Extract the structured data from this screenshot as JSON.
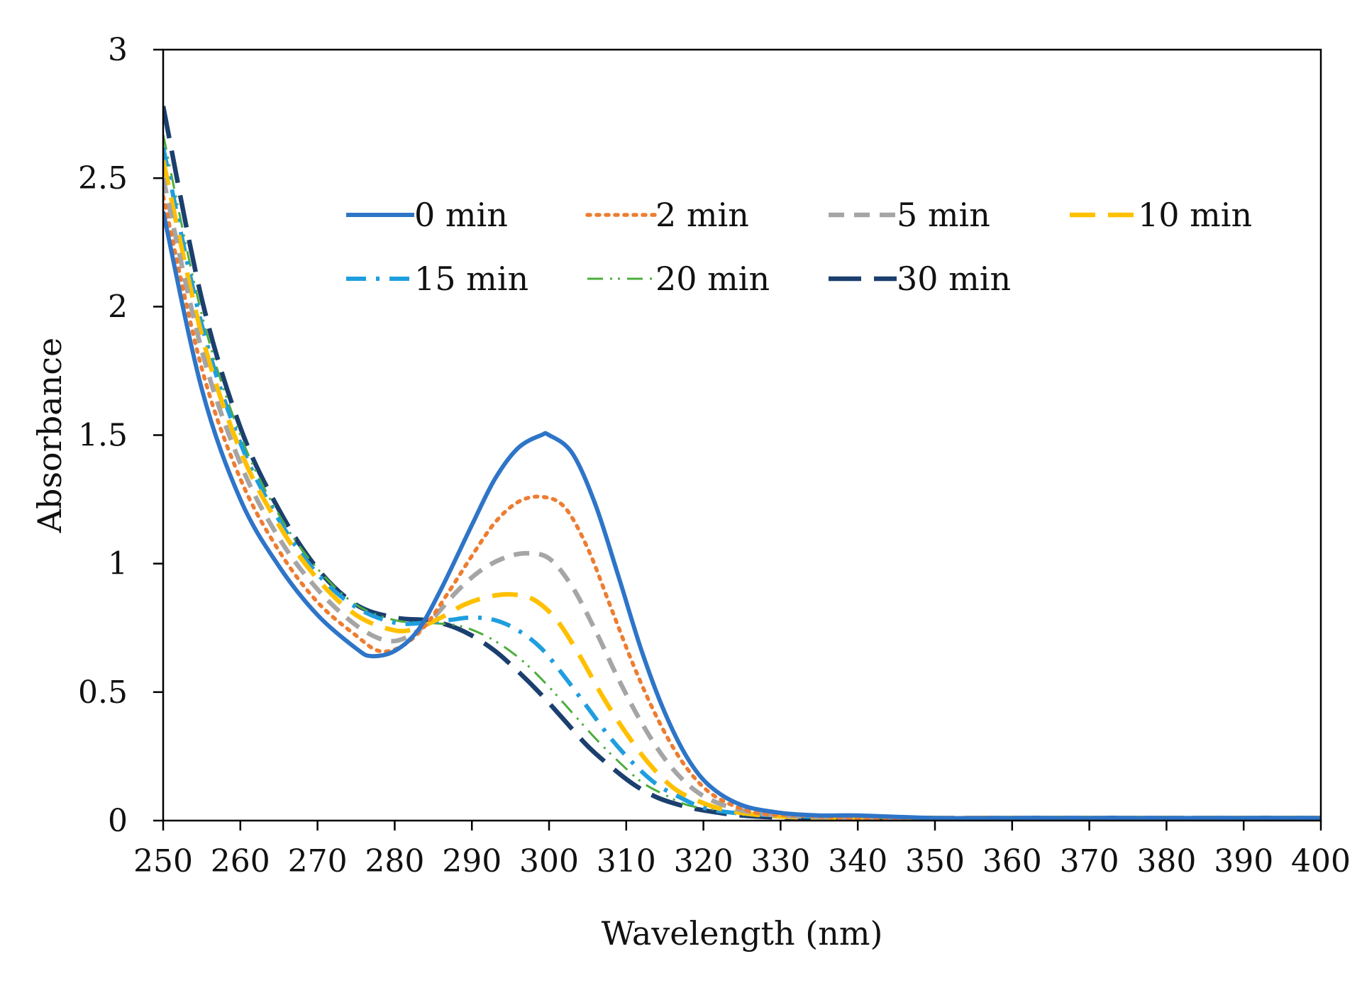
{
  "chart_data": {
    "type": "line",
    "title": "",
    "xlabel": "Wavelength (nm)",
    "ylabel": "Absorbance",
    "xlim": [
      250,
      400
    ],
    "ylim": [
      0,
      3
    ],
    "xticks": [
      250,
      260,
      270,
      280,
      290,
      300,
      310,
      320,
      330,
      340,
      350,
      360,
      370,
      380,
      390,
      400
    ],
    "yticks": [
      0,
      0.5,
      1,
      1.5,
      2,
      2.5,
      3
    ],
    "ytick_labels": [
      "0",
      "0.5",
      "1",
      "1.5",
      "2",
      "2.5",
      "3"
    ],
    "grid": false,
    "legend": "top-center",
    "series": [
      {
        "name": "0 min",
        "color": "#2e75c8",
        "style": "solid",
        "x": [
          250,
          255,
          260,
          265,
          270,
          275,
          277,
          280,
          283,
          286,
          290,
          293,
          296,
          299,
          300,
          303,
          306,
          309,
          312,
          315,
          318,
          321,
          325,
          330,
          335,
          340,
          350,
          360,
          370,
          380,
          390,
          400
        ],
        "y": [
          2.37,
          1.68,
          1.25,
          0.99,
          0.8,
          0.67,
          0.64,
          0.66,
          0.74,
          0.9,
          1.15,
          1.33,
          1.45,
          1.5,
          1.5,
          1.43,
          1.23,
          0.95,
          0.66,
          0.42,
          0.24,
          0.13,
          0.06,
          0.03,
          0.02,
          0.02,
          0.01,
          0.01,
          0.01,
          0.01,
          0.01,
          0.01
        ]
      },
      {
        "name": "2 min",
        "color": "#ed7d31",
        "style": "dotted",
        "x": [
          250,
          255,
          260,
          265,
          270,
          275,
          278,
          281,
          284,
          287,
          290,
          293,
          296,
          299,
          302,
          305,
          308,
          311,
          314,
          317,
          320,
          323,
          327,
          332,
          340,
          350,
          360,
          370,
          380,
          390,
          400
        ],
        "y": [
          2.43,
          1.76,
          1.33,
          1.05,
          0.85,
          0.72,
          0.66,
          0.68,
          0.76,
          0.89,
          1.03,
          1.16,
          1.24,
          1.26,
          1.22,
          1.06,
          0.83,
          0.6,
          0.4,
          0.24,
          0.13,
          0.07,
          0.03,
          0.02,
          0.01,
          0.01,
          0.01,
          0.01,
          0.01,
          0.01,
          0.01
        ]
      },
      {
        "name": "5 min",
        "color": "#a5a5a5",
        "style": "dashed",
        "x": [
          250,
          255,
          260,
          265,
          270,
          275,
          279,
          282,
          285,
          288,
          291,
          294,
          297,
          300,
          303,
          306,
          309,
          312,
          315,
          318,
          321,
          325,
          330,
          340,
          350,
          360,
          370,
          380,
          390,
          400
        ],
        "y": [
          2.5,
          1.83,
          1.39,
          1.1,
          0.9,
          0.76,
          0.7,
          0.72,
          0.79,
          0.89,
          0.97,
          1.02,
          1.04,
          1.02,
          0.91,
          0.74,
          0.55,
          0.38,
          0.24,
          0.14,
          0.08,
          0.04,
          0.02,
          0.01,
          0.01,
          0.01,
          0.01,
          0.01,
          0.01,
          0.01
        ]
      },
      {
        "name": "10 min",
        "color": "#ffc000",
        "style": "dashed-long",
        "x": [
          250,
          255,
          260,
          265,
          270,
          275,
          280,
          283,
          286,
          289,
          292,
          295,
          298,
          301,
          304,
          307,
          310,
          313,
          316,
          319,
          323,
          328,
          335,
          340,
          350,
          360,
          370,
          380,
          390,
          400
        ],
        "y": [
          2.57,
          1.89,
          1.44,
          1.15,
          0.94,
          0.8,
          0.74,
          0.75,
          0.79,
          0.84,
          0.87,
          0.88,
          0.86,
          0.78,
          0.64,
          0.48,
          0.34,
          0.22,
          0.13,
          0.08,
          0.04,
          0.02,
          0.01,
          0.01,
          0.01,
          0.01,
          0.01,
          0.01,
          0.01,
          0.01
        ]
      },
      {
        "name": "15 min",
        "color": "#1f9ede",
        "style": "dash-dot",
        "x": [
          250,
          255,
          260,
          265,
          270,
          275,
          280,
          284,
          287,
          290,
          293,
          296,
          299,
          302,
          305,
          308,
          311,
          314,
          317,
          320,
          324,
          330,
          340,
          350,
          360,
          370,
          380,
          390,
          400
        ],
        "y": [
          2.62,
          1.93,
          1.47,
          1.17,
          0.96,
          0.83,
          0.77,
          0.77,
          0.78,
          0.79,
          0.78,
          0.74,
          0.67,
          0.56,
          0.44,
          0.32,
          0.22,
          0.14,
          0.09,
          0.05,
          0.03,
          0.02,
          0.01,
          0.01,
          0.01,
          0.01,
          0.01,
          0.01,
          0.01
        ]
      },
      {
        "name": "20 min",
        "color": "#4cae3c",
        "style": "dash-dot-dot",
        "x": [
          250,
          255,
          260,
          265,
          270,
          275,
          280,
          284,
          288,
          291,
          294,
          297,
          300,
          303,
          306,
          309,
          312,
          315,
          318,
          322,
          326,
          332,
          340,
          350,
          360,
          370,
          380,
          390,
          400
        ],
        "y": [
          2.67,
          1.97,
          1.5,
          1.19,
          0.98,
          0.84,
          0.78,
          0.77,
          0.76,
          0.73,
          0.68,
          0.61,
          0.52,
          0.42,
          0.32,
          0.23,
          0.15,
          0.1,
          0.06,
          0.04,
          0.02,
          0.02,
          0.01,
          0.01,
          0.01,
          0.01,
          0.01,
          0.01,
          0.01
        ]
      },
      {
        "name": "30 min",
        "color": "#1b3f6e",
        "style": "long-dash",
        "x": [
          250,
          255,
          260,
          265,
          270,
          275,
          280,
          284,
          287,
          290,
          293,
          296,
          299,
          302,
          305,
          308,
          311,
          314,
          317,
          320,
          325,
          332,
          340,
          350,
          360,
          370,
          380,
          390,
          400
        ],
        "y": [
          2.78,
          2.03,
          1.53,
          1.21,
          0.98,
          0.84,
          0.79,
          0.78,
          0.76,
          0.72,
          0.66,
          0.58,
          0.49,
          0.39,
          0.29,
          0.21,
          0.14,
          0.09,
          0.06,
          0.04,
          0.02,
          0.01,
          0.01,
          0.01,
          0.01,
          0.01,
          0.01,
          0.01,
          0.01
        ]
      }
    ]
  }
}
